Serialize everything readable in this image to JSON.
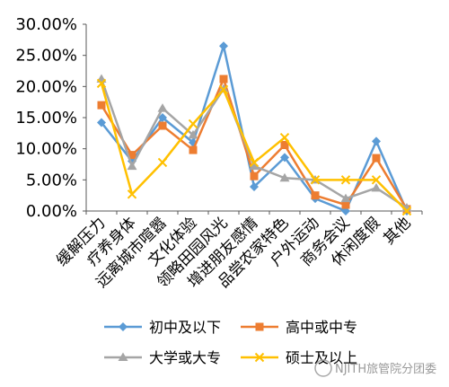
{
  "chart_data": {
    "type": "line",
    "categories": [
      "缓解压力",
      "疗养身体",
      "远离城市喧嚣",
      "文化体验",
      "领略田园风光",
      "增进朋友感情",
      "品尝农家特色",
      "户外运动",
      "商务会议",
      "休闲度假",
      "其他"
    ],
    "y_tick_labels": [
      "0.00%",
      "5.00%",
      "10.00%",
      "15.00%",
      "20.00%",
      "25.00%",
      "30.00%"
    ],
    "ylim": [
      0,
      30
    ],
    "grid": false,
    "legend_position": "bottom",
    "series": [
      {
        "name": "初中及以下",
        "color": "#5b9bd5",
        "marker": "diamond",
        "values": [
          14.2,
          8.0,
          15.0,
          11.0,
          26.5,
          3.9,
          8.6,
          2.0,
          0.0,
          11.2,
          0.0
        ]
      },
      {
        "name": "高中或中专",
        "color": "#ed7d31",
        "marker": "square",
        "values": [
          17.0,
          9.0,
          13.7,
          9.8,
          21.2,
          5.6,
          10.6,
          2.5,
          1.0,
          8.5,
          0.3
        ]
      },
      {
        "name": "大学或大专",
        "color": "#a5a5a5",
        "marker": "triangle",
        "values": [
          21.2,
          7.2,
          16.5,
          12.2,
          19.6,
          7.2,
          5.3,
          5.0,
          2.0,
          3.7,
          0.5
        ]
      },
      {
        "name": "硕士及以上",
        "color": "#ffc000",
        "marker": "x",
        "values": [
          20.5,
          2.7,
          7.8,
          14.0,
          19.5,
          7.8,
          11.8,
          5.0,
          5.0,
          5.0,
          0.0
        ]
      }
    ]
  },
  "watermark": "NJITH旅管院分团委"
}
